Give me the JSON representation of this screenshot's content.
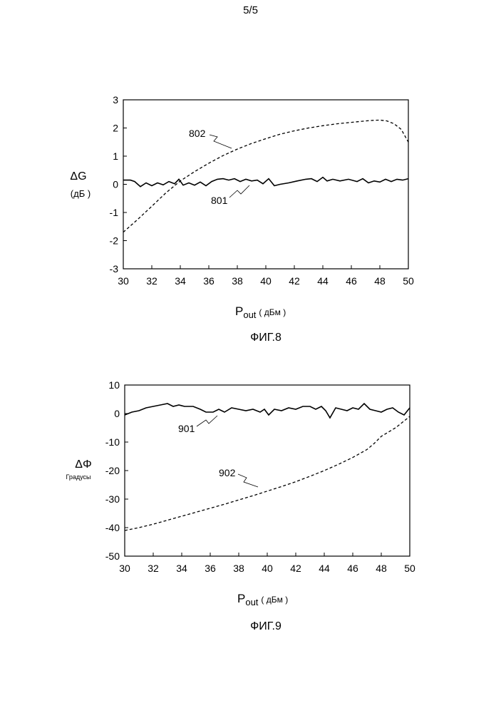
{
  "page_number": "5/5",
  "chart_data": [
    {
      "type": "line",
      "caption": "ФИГ.8",
      "ylabel": "ΔG",
      "yunit": "(дБ )",
      "xlabel": "P",
      "xlabel_sub": "out",
      "xunit": "( дБм )",
      "xlim": [
        30,
        50
      ],
      "ylim": [
        -3,
        3
      ],
      "xticks": [
        30,
        32,
        34,
        36,
        38,
        40,
        42,
        44,
        46,
        48,
        50
      ],
      "yticks": [
        3,
        2,
        1,
        0,
        -1,
        -2,
        -3
      ],
      "grid": false,
      "series": [
        {
          "name": "801",
          "style": "solid",
          "x": [
            30,
            30.5,
            30.8,
            31.2,
            31.6,
            32,
            32.4,
            32.8,
            33.2,
            33.6,
            33.9,
            34.2,
            34.6,
            35,
            35.4,
            35.8,
            36.2,
            36.6,
            37,
            37.4,
            37.8,
            38.2,
            38.6,
            39,
            39.4,
            39.8,
            40.2,
            40.6,
            41,
            41.6,
            42.2,
            42.8,
            43.2,
            43.6,
            44,
            44.3,
            44.7,
            45.2,
            45.8,
            46.4,
            46.8,
            47.2,
            47.6,
            48,
            48.4,
            48.8,
            49.2,
            49.6,
            50
          ],
          "y": [
            0.15,
            0.15,
            0.1,
            -0.08,
            0.05,
            -0.05,
            0.05,
            -0.02,
            0.1,
            0.02,
            0.18,
            -0.03,
            0.05,
            -0.03,
            0.08,
            -0.05,
            0.1,
            0.18,
            0.2,
            0.15,
            0.2,
            0.1,
            0.18,
            0.12,
            0.15,
            0.02,
            0.2,
            -0.05,
            0.0,
            0.05,
            0.12,
            0.18,
            0.2,
            0.1,
            0.25,
            0.12,
            0.18,
            0.12,
            0.18,
            0.1,
            0.2,
            0.05,
            0.12,
            0.08,
            0.18,
            0.1,
            0.18,
            0.15,
            0.2
          ]
        },
        {
          "name": "802",
          "style": "dashed",
          "x": [
            30,
            31,
            32,
            33,
            34,
            35,
            36,
            37,
            38,
            39,
            40,
            41,
            42,
            43,
            44,
            45,
            46,
            47,
            47.5,
            48,
            48.5,
            49,
            49.5,
            50
          ],
          "y": [
            -1.7,
            -1.25,
            -0.78,
            -0.3,
            0.12,
            0.45,
            0.75,
            1.02,
            1.25,
            1.45,
            1.62,
            1.78,
            1.9,
            2.0,
            2.08,
            2.15,
            2.2,
            2.25,
            2.27,
            2.28,
            2.25,
            2.15,
            1.95,
            1.5
          ]
        }
      ],
      "annotations": [
        "802",
        "801"
      ]
    },
    {
      "type": "line",
      "caption": "ФИГ.9",
      "ylabel": "ΔΦ",
      "yunit": "Градусы",
      "xlabel": "P",
      "xlabel_sub": "out",
      "xunit": "( дБм )",
      "xlim": [
        30,
        50
      ],
      "ylim": [
        -50,
        10
      ],
      "xticks": [
        30,
        32,
        34,
        36,
        38,
        40,
        42,
        44,
        46,
        48,
        50
      ],
      "yticks": [
        10,
        0,
        -10,
        -20,
        -30,
        -40,
        -50
      ],
      "grid": false,
      "series": [
        {
          "name": "901",
          "style": "solid",
          "x": [
            30,
            30.5,
            31,
            31.5,
            32,
            32.5,
            33,
            33.4,
            33.8,
            34.2,
            34.8,
            35.3,
            35.7,
            36.2,
            36.6,
            37,
            37.5,
            38,
            38.5,
            39,
            39.5,
            39.8,
            40.1,
            40.5,
            41,
            41.5,
            42,
            42.5,
            43,
            43.4,
            43.8,
            44.1,
            44.4,
            44.8,
            45.2,
            45.6,
            46,
            46.4,
            46.8,
            47.2,
            47.6,
            48,
            48.4,
            48.8,
            49.2,
            49.6,
            50
          ],
          "y": [
            -0.5,
            0.5,
            1.0,
            2.0,
            2.5,
            3.0,
            3.5,
            2.5,
            3.0,
            2.5,
            2.5,
            1.5,
            0.5,
            0.5,
            1.5,
            0.5,
            2.0,
            1.5,
            1.0,
            1.5,
            0.5,
            1.5,
            -0.5,
            1.5,
            1.0,
            2.0,
            1.5,
            2.5,
            2.5,
            1.5,
            2.5,
            1.0,
            -1.5,
            2.0,
            1.5,
            1.0,
            2.0,
            1.5,
            3.5,
            1.5,
            1.0,
            0.5,
            1.5,
            2.0,
            0.5,
            -0.5,
            2.0
          ]
        },
        {
          "name": "902",
          "style": "dashed",
          "x": [
            30,
            31,
            32,
            33,
            34,
            35,
            36,
            37,
            38,
            39,
            40,
            41,
            42,
            43,
            44,
            45,
            46,
            47,
            47.5,
            48,
            48.5,
            49,
            49.5,
            50
          ],
          "y": [
            -41,
            -40,
            -38.8,
            -37.4,
            -36,
            -34.6,
            -33.2,
            -31.8,
            -30.3,
            -28.8,
            -27.2,
            -25.6,
            -23.9,
            -22.0,
            -20.0,
            -17.8,
            -15.4,
            -12.6,
            -10.5,
            -8,
            -6.5,
            -5,
            -3,
            -1
          ]
        }
      ],
      "annotations": [
        "901",
        "902"
      ]
    }
  ]
}
